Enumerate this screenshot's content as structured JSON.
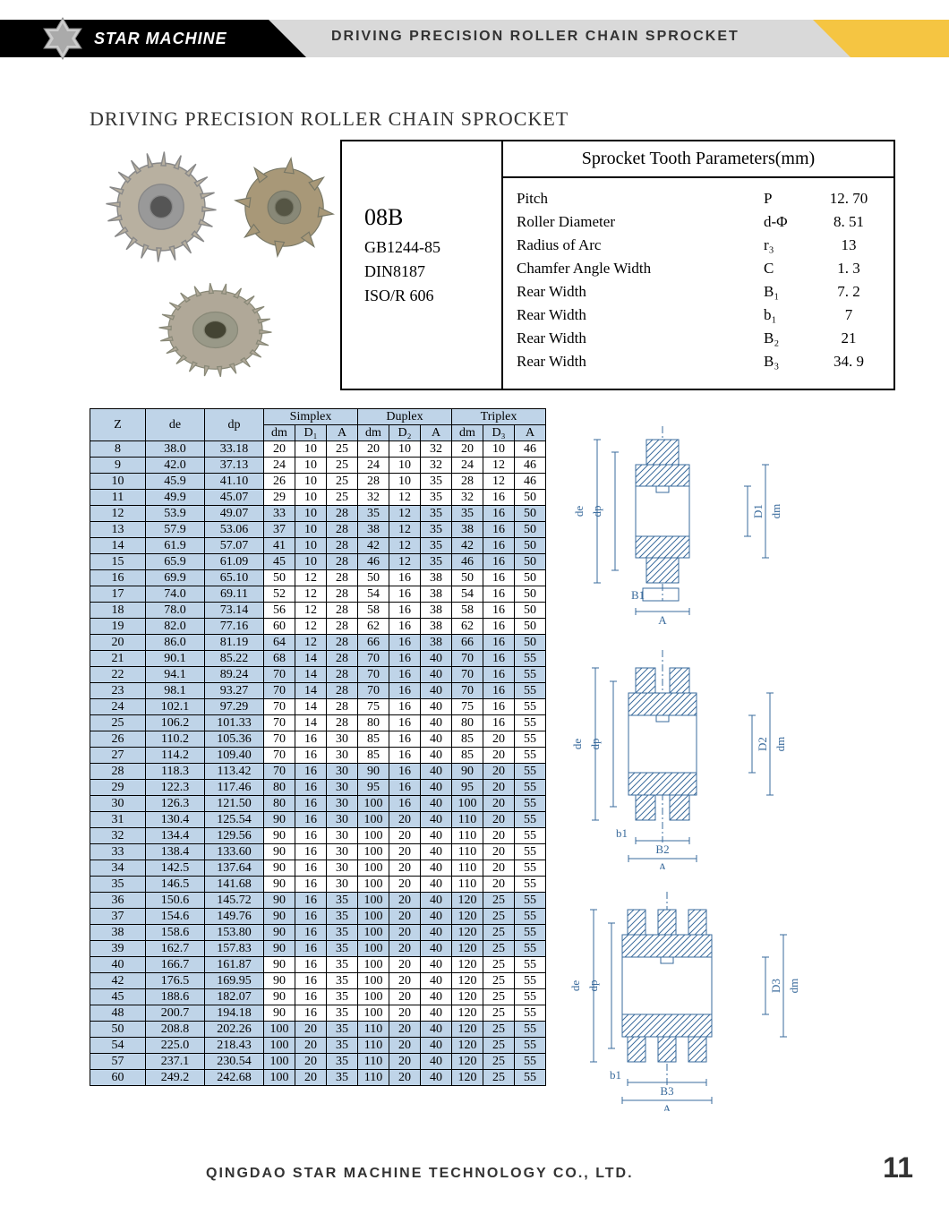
{
  "header": {
    "brand": "STAR MACHINE",
    "title": "DRIVING  PRECISION  ROLLER  CHAIN  SPROCKET"
  },
  "main_title": "DRIVING PRECISION ROLLER CHAIN SPROCKET",
  "spec": {
    "code": "08B",
    "standards": [
      "GB1244-85",
      "DIN8187",
      "ISO/R 606"
    ],
    "params_title": "Sprocket Tooth Parameters(mm)",
    "rows": [
      {
        "label": "Pitch",
        "symbol": "P",
        "value": "12. 70"
      },
      {
        "label": "Roller Diameter",
        "symbol": "d-Φ",
        "value": "8. 51"
      },
      {
        "label": "Radius of Arc",
        "symbol": "r₃",
        "value": "13"
      },
      {
        "label": "Chamfer Angle Width",
        "symbol": "C",
        "value": "1. 3"
      },
      {
        "label": "Rear Width",
        "symbol": "B₁",
        "value": "7. 2"
      },
      {
        "label": "Rear Width",
        "symbol": "b₁",
        "value": "7"
      },
      {
        "label": "Rear Width",
        "symbol": "B₂",
        "value": "21"
      },
      {
        "label": "Rear Width",
        "symbol": "B₃",
        "value": "34. 9"
      }
    ]
  },
  "table": {
    "group_headers": [
      "Simplex",
      "Duplex",
      "Triplex"
    ],
    "sub_headers": [
      "dm",
      "D₁",
      "A",
      "dm",
      "D₂",
      "A",
      "dm",
      "D₃",
      "A"
    ],
    "left_headers": [
      "Z",
      "de",
      "dp"
    ],
    "rows": [
      [
        "8",
        "38.0",
        "33.18",
        "20",
        "10",
        "25",
        "20",
        "10",
        "32",
        "20",
        "10",
        "46"
      ],
      [
        "9",
        "42.0",
        "37.13",
        "24",
        "10",
        "25",
        "24",
        "10",
        "32",
        "24",
        "12",
        "46"
      ],
      [
        "10",
        "45.9",
        "41.10",
        "26",
        "10",
        "25",
        "28",
        "10",
        "35",
        "28",
        "12",
        "46"
      ],
      [
        "11",
        "49.9",
        "45.07",
        "29",
        "10",
        "25",
        "32",
        "12",
        "35",
        "32",
        "16",
        "50"
      ],
      [
        "12",
        "53.9",
        "49.07",
        "33",
        "10",
        "28",
        "35",
        "12",
        "35",
        "35",
        "16",
        "50"
      ],
      [
        "13",
        "57.9",
        "53.06",
        "37",
        "10",
        "28",
        "38",
        "12",
        "35",
        "38",
        "16",
        "50"
      ],
      [
        "14",
        "61.9",
        "57.07",
        "41",
        "10",
        "28",
        "42",
        "12",
        "35",
        "42",
        "16",
        "50"
      ],
      [
        "15",
        "65.9",
        "61.09",
        "45",
        "10",
        "28",
        "46",
        "12",
        "35",
        "46",
        "16",
        "50"
      ],
      [
        "16",
        "69.9",
        "65.10",
        "50",
        "12",
        "28",
        "50",
        "16",
        "38",
        "50",
        "16",
        "50"
      ],
      [
        "17",
        "74.0",
        "69.11",
        "52",
        "12",
        "28",
        "54",
        "16",
        "38",
        "54",
        "16",
        "50"
      ],
      [
        "18",
        "78.0",
        "73.14",
        "56",
        "12",
        "28",
        "58",
        "16",
        "38",
        "58",
        "16",
        "50"
      ],
      [
        "19",
        "82.0",
        "77.16",
        "60",
        "12",
        "28",
        "62",
        "16",
        "38",
        "62",
        "16",
        "50"
      ],
      [
        "20",
        "86.0",
        "81.19",
        "64",
        "12",
        "28",
        "66",
        "16",
        "38",
        "66",
        "16",
        "50"
      ],
      [
        "21",
        "90.1",
        "85.22",
        "68",
        "14",
        "28",
        "70",
        "16",
        "40",
        "70",
        "16",
        "55"
      ],
      [
        "22",
        "94.1",
        "89.24",
        "70",
        "14",
        "28",
        "70",
        "16",
        "40",
        "70",
        "16",
        "55"
      ],
      [
        "23",
        "98.1",
        "93.27",
        "70",
        "14",
        "28",
        "70",
        "16",
        "40",
        "70",
        "16",
        "55"
      ],
      [
        "24",
        "102.1",
        "97.29",
        "70",
        "14",
        "28",
        "75",
        "16",
        "40",
        "75",
        "16",
        "55"
      ],
      [
        "25",
        "106.2",
        "101.33",
        "70",
        "14",
        "28",
        "80",
        "16",
        "40",
        "80",
        "16",
        "55"
      ],
      [
        "26",
        "110.2",
        "105.36",
        "70",
        "16",
        "30",
        "85",
        "16",
        "40",
        "85",
        "20",
        "55"
      ],
      [
        "27",
        "114.2",
        "109.40",
        "70",
        "16",
        "30",
        "85",
        "16",
        "40",
        "85",
        "20",
        "55"
      ],
      [
        "28",
        "118.3",
        "113.42",
        "70",
        "16",
        "30",
        "90",
        "16",
        "40",
        "90",
        "20",
        "55"
      ],
      [
        "29",
        "122.3",
        "117.46",
        "80",
        "16",
        "30",
        "95",
        "16",
        "40",
        "95",
        "20",
        "55"
      ],
      [
        "30",
        "126.3",
        "121.50",
        "80",
        "16",
        "30",
        "100",
        "16",
        "40",
        "100",
        "20",
        "55"
      ],
      [
        "31",
        "130.4",
        "125.54",
        "90",
        "16",
        "30",
        "100",
        "20",
        "40",
        "110",
        "20",
        "55"
      ],
      [
        "32",
        "134.4",
        "129.56",
        "90",
        "16",
        "30",
        "100",
        "20",
        "40",
        "110",
        "20",
        "55"
      ],
      [
        "33",
        "138.4",
        "133.60",
        "90",
        "16",
        "30",
        "100",
        "20",
        "40",
        "110",
        "20",
        "55"
      ],
      [
        "34",
        "142.5",
        "137.64",
        "90",
        "16",
        "30",
        "100",
        "20",
        "40",
        "110",
        "20",
        "55"
      ],
      [
        "35",
        "146.5",
        "141.68",
        "90",
        "16",
        "30",
        "100",
        "20",
        "40",
        "110",
        "20",
        "55"
      ],
      [
        "36",
        "150.6",
        "145.72",
        "90",
        "16",
        "35",
        "100",
        "20",
        "40",
        "120",
        "25",
        "55"
      ],
      [
        "37",
        "154.6",
        "149.76",
        "90",
        "16",
        "35",
        "100",
        "20",
        "40",
        "120",
        "25",
        "55"
      ],
      [
        "38",
        "158.6",
        "153.80",
        "90",
        "16",
        "35",
        "100",
        "20",
        "40",
        "120",
        "25",
        "55"
      ],
      [
        "39",
        "162.7",
        "157.83",
        "90",
        "16",
        "35",
        "100",
        "20",
        "40",
        "120",
        "25",
        "55"
      ],
      [
        "40",
        "166.7",
        "161.87",
        "90",
        "16",
        "35",
        "100",
        "20",
        "40",
        "120",
        "25",
        "55"
      ],
      [
        "42",
        "176.5",
        "169.95",
        "90",
        "16",
        "35",
        "100",
        "20",
        "40",
        "120",
        "25",
        "55"
      ],
      [
        "45",
        "188.6",
        "182.07",
        "90",
        "16",
        "35",
        "100",
        "20",
        "40",
        "120",
        "25",
        "55"
      ],
      [
        "48",
        "200.7",
        "194.18",
        "90",
        "16",
        "35",
        "100",
        "20",
        "40",
        "120",
        "25",
        "55"
      ],
      [
        "50",
        "208.8",
        "202.26",
        "100",
        "20",
        "35",
        "110",
        "20",
        "40",
        "120",
        "25",
        "55"
      ],
      [
        "54",
        "225.0",
        "218.43",
        "100",
        "20",
        "35",
        "110",
        "20",
        "40",
        "120",
        "25",
        "55"
      ],
      [
        "57",
        "237.1",
        "230.54",
        "100",
        "20",
        "35",
        "110",
        "20",
        "40",
        "120",
        "25",
        "55"
      ],
      [
        "60",
        "249.2",
        "242.68",
        "100",
        "20",
        "35",
        "110",
        "20",
        "40",
        "120",
        "25",
        "55"
      ]
    ],
    "band_start_parity": 1,
    "colors": {
      "header_bg": "#bfd4e8",
      "border": "#000000"
    }
  },
  "diagrams": {
    "labels": {
      "de": "de",
      "dp": "dp",
      "dm": "dm",
      "D1": "D1",
      "D2": "D2",
      "D3": "D3",
      "B1": "B1",
      "B2": "B2",
      "B3": "B3",
      "b1": "b1",
      "A": "A"
    },
    "hatch_color": "#3a6b9c"
  },
  "footer": {
    "company": "QINGDAO  STAR  MACHINE  TECHNOLOGY  CO., LTD.",
    "page": "11"
  },
  "palette": {
    "black": "#000000",
    "grey": "#d9d9d9",
    "yellow": "#f5c542",
    "blue_band": "#bfd4e8"
  }
}
